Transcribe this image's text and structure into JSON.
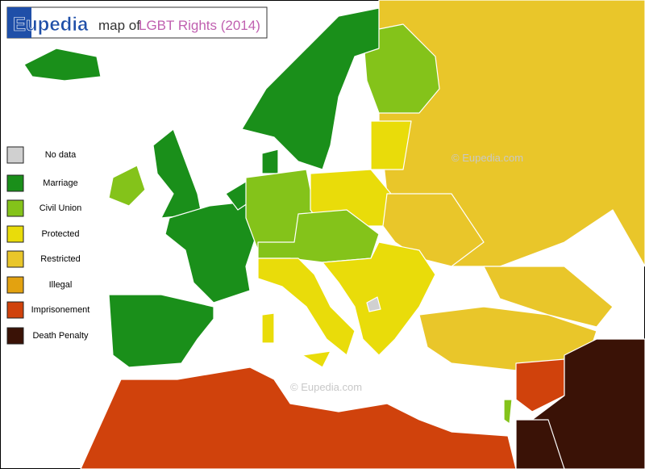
{
  "header": {
    "brand": "Eupedia",
    "prefix": "map of",
    "title": "LGBT Rights (2014)"
  },
  "legend": {
    "items": [
      {
        "label": "No data",
        "color": "#d0d0d0"
      },
      {
        "label": "Marriage",
        "color": "#1a8f1a"
      },
      {
        "label": "Civil Union",
        "color": "#84c31a"
      },
      {
        "label": "Protected",
        "color": "#e9dc0a"
      },
      {
        "label": "Restricted",
        "color": "#e9c62a"
      },
      {
        "label": "Illegal",
        "color": "#e3a210"
      },
      {
        "label": "Imprisonement",
        "color": "#d0420c"
      },
      {
        "label": "Death Penalty",
        "color": "#3a1206"
      }
    ]
  },
  "watermarks": [
    "© Eupedia.com",
    "© Eupedia.com"
  ]
}
